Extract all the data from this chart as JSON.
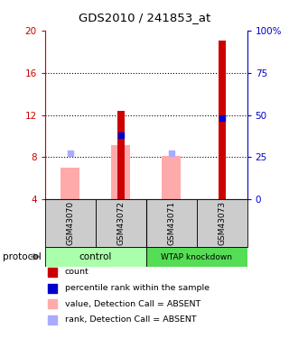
{
  "title": "GDS2010 / 241853_at",
  "samples": [
    "GSM43070",
    "GSM43072",
    "GSM43071",
    "GSM43073"
  ],
  "ylim_left": [
    4,
    20
  ],
  "ylim_right": [
    0,
    100
  ],
  "yticks_left": [
    4,
    8,
    12,
    16,
    20
  ],
  "yticks_right": [
    0,
    25,
    50,
    75,
    100
  ],
  "ytick_labels_right": [
    "0",
    "25",
    "50",
    "75",
    "100%"
  ],
  "red_bar_values": [
    4,
    12.4,
    4,
    19.0
  ],
  "red_bar_base": 4,
  "pink_bar_values": [
    7.0,
    9.1,
    8.15,
    4
  ],
  "blue_sq_values": [
    4,
    10.05,
    4,
    11.7
  ],
  "light_blue_values": [
    8.35,
    4,
    8.35,
    4
  ],
  "colors": {
    "red": "#cc0000",
    "pink": "#ffaaaa",
    "blue": "#0000cc",
    "light_blue": "#aaaaff",
    "axis_left": "#cc0000",
    "axis_right": "#0000cc",
    "gray_box": "#cccccc",
    "ctrl_box": "#aaffaa",
    "wtap_box": "#55dd55"
  },
  "protocol_label": "protocol",
  "legend_items": [
    {
      "color": "#cc0000",
      "label": "count"
    },
    {
      "color": "#0000cc",
      "label": "percentile rank within the sample"
    },
    {
      "color": "#ffaaaa",
      "label": "value, Detection Call = ABSENT"
    },
    {
      "color": "#aaaaff",
      "label": "rank, Detection Call = ABSENT"
    }
  ]
}
